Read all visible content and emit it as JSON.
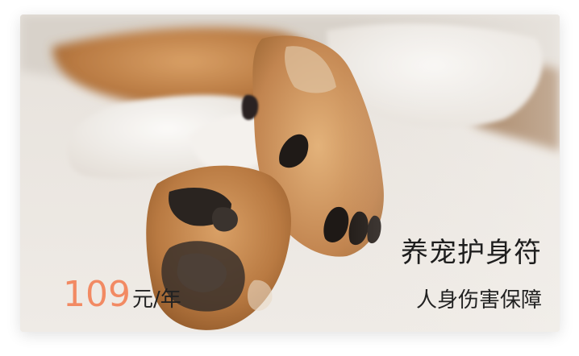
{
  "card": {
    "title": "养宠护身符",
    "subtitle": "人身伤害保障",
    "price": {
      "amount": "109",
      "unit": "元/年"
    },
    "colors": {
      "price_accent": "#f28a63",
      "text_dark": "#1e1e1e"
    },
    "image": "dog-paws-photo"
  }
}
